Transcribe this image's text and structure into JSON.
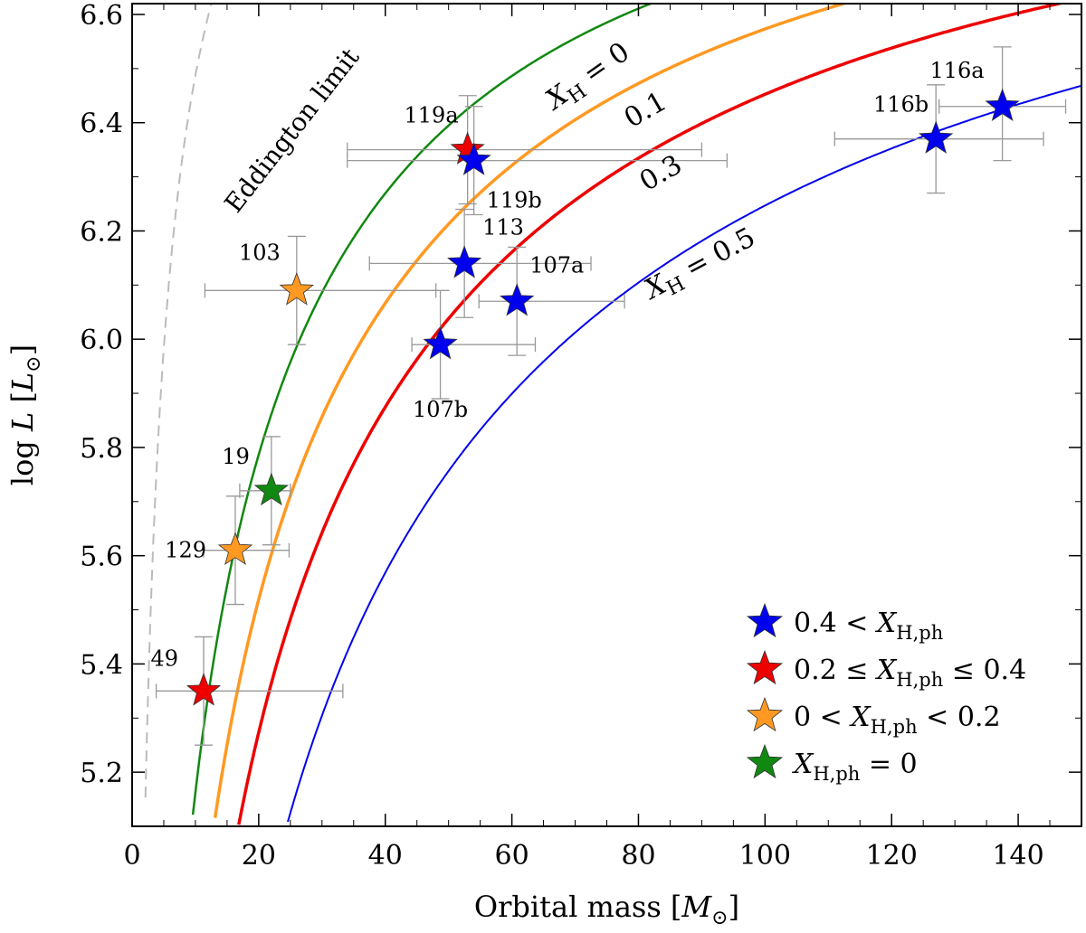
{
  "chart_data": {
    "type": "scatter",
    "xlabel": "Orbital mass [M⊙]",
    "ylabel": "log L [L⊙]",
    "xlabel_parts": {
      "pre": "Orbital mass [",
      "var": "M",
      "sub": "⊙",
      "post": "]"
    },
    "ylabel_parts": {
      "pre": "log ",
      "var": "L",
      "mid": " [",
      "var2": "L",
      "sub": "⊙",
      "post": "]"
    },
    "xlim": [
      0,
      150
    ],
    "ylim": [
      5.1,
      6.62
    ],
    "xticks": [
      0,
      20,
      40,
      60,
      80,
      100,
      120,
      140
    ],
    "yticks": [
      5.2,
      5.4,
      5.6,
      5.8,
      6.0,
      6.2,
      6.4,
      6.6
    ],
    "colors": {
      "blue": "#0000ee",
      "red": "#ee0000",
      "orange": "#ff9922",
      "green": "#118811",
      "gray": "#bbbbbb",
      "errorbar": "#999999"
    },
    "curves": [
      {
        "name": "Eddington limit",
        "label": "Eddington limit",
        "kind": "eddington",
        "X": 1.0,
        "color": "#bbbbbb",
        "dashed": true
      },
      {
        "name": "X_H = 0",
        "label": "X_H = 0",
        "X": 0.0,
        "color": "#118811",
        "width": 2.5
      },
      {
        "name": "0.1",
        "label": "0.1",
        "X": 0.1,
        "color": "#ff9922",
        "width": 3.5
      },
      {
        "name": "0.3",
        "label": "0.3",
        "X": 0.3,
        "color": "#ee0000",
        "width": 3.5
      },
      {
        "name": "X_H = 0.5",
        "label": "X_H = 0.5",
        "X": 0.5,
        "color": "#0000ee",
        "width": 2
      }
    ],
    "points": [
      {
        "label": "116a",
        "x": 137.5,
        "y": 6.43,
        "xerr": [
          10,
          10
        ],
        "yerr": [
          0.1,
          0.11
        ],
        "class": "blue"
      },
      {
        "label": "116b",
        "x": 127,
        "y": 6.37,
        "xerr": [
          16,
          17
        ],
        "yerr": [
          0.1,
          0.1
        ],
        "class": "blue"
      },
      {
        "label": "119a",
        "x": 53,
        "y": 6.35,
        "xerr": [
          19,
          37
        ],
        "yerr": [
          0.1,
          0.1
        ],
        "class": "red"
      },
      {
        "label": "119b",
        "x": 54,
        "y": 6.33,
        "xerr": [
          20,
          40
        ],
        "yerr": [
          0.1,
          0.1
        ],
        "class": "blue"
      },
      {
        "label": "113",
        "x": 52.5,
        "y": 6.14,
        "xerr": [
          15,
          20
        ],
        "yerr": [
          0.1,
          0.1
        ],
        "class": "blue"
      },
      {
        "label": "107a",
        "x": 60.8,
        "y": 6.07,
        "xerr": [
          6,
          17
        ],
        "yerr": [
          0.1,
          0.1
        ],
        "class": "blue"
      },
      {
        "label": "103",
        "x": 26,
        "y": 6.09,
        "xerr": [
          14.5,
          22
        ],
        "yerr": [
          0.1,
          0.1
        ],
        "class": "orange"
      },
      {
        "label": "107b",
        "x": 48.7,
        "y": 5.99,
        "xerr": [
          4.5,
          15
        ],
        "yerr": [
          0.1,
          0.1
        ],
        "class": "blue"
      },
      {
        "label": "19",
        "x": 22,
        "y": 5.72,
        "xerr": [
          5,
          3
        ],
        "yerr": [
          0.1,
          0.1
        ],
        "class": "green"
      },
      {
        "label": "129",
        "x": 16.3,
        "y": 5.61,
        "xerr": [
          5,
          8.5
        ],
        "yerr": [
          0.1,
          0.1
        ],
        "class": "orange"
      },
      {
        "label": "49",
        "x": 11.3,
        "y": 5.35,
        "xerr": [
          7.5,
          22
        ],
        "yerr": [
          0.1,
          0.1
        ],
        "class": "red"
      }
    ],
    "legend_position": "bottom-right",
    "legend": [
      {
        "class": "blue",
        "pre": "0.4 < ",
        "post": ""
      },
      {
        "class": "red",
        "pre": "0.2 ≤ ",
        "post": " ≤ 0.4"
      },
      {
        "class": "orange",
        "pre": "0 < ",
        "post": " < 0.2"
      },
      {
        "class": "green",
        "pre": "",
        "post": " = 0"
      }
    ],
    "legend_var": {
      "var": "X",
      "sub": "H,ph"
    }
  }
}
